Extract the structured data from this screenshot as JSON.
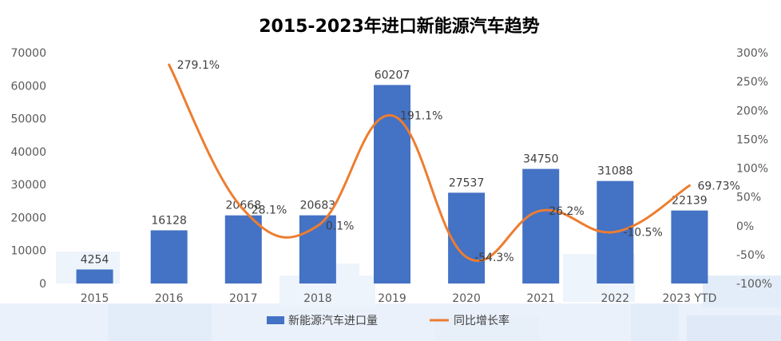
{
  "chart_data": {
    "type": "bar",
    "title": "2015-2023年进口新能源汽车趋势",
    "categories": [
      "2015",
      "2016",
      "2017",
      "2018",
      "2019",
      "2020",
      "2021",
      "2022",
      "2023 YTD"
    ],
    "series": [
      {
        "name": "新能源汽车进口量",
        "type": "bar",
        "axis": "left",
        "color": "#4472C4",
        "values": [
          4254,
          16128,
          20668,
          20683,
          60207,
          27537,
          34750,
          31088,
          22139
        ],
        "labels": [
          "4254",
          "16128",
          "20668",
          "20683",
          "60207",
          "27537",
          "34750",
          "31088",
          "22139"
        ]
      },
      {
        "name": "同比增长率",
        "type": "line",
        "axis": "right",
        "color": "#ED7D31",
        "values": [
          null,
          279.1,
          28.1,
          0.1,
          191.1,
          -54.3,
          26.2,
          -10.5,
          69.73
        ],
        "labels": [
          "",
          "279.1%",
          "28.1%",
          "0.1%",
          "191.1%",
          "-54.3%",
          "26.2%",
          "-10.5%",
          "69.73%"
        ]
      }
    ],
    "y_left": {
      "ylim": [
        0,
        70000
      ],
      "ticks": [
        "0",
        "10000",
        "20000",
        "30000",
        "40000",
        "50000",
        "60000",
        "70000"
      ]
    },
    "y_right": {
      "ylim": [
        -100,
        300
      ],
      "ticks": [
        "-100%",
        "-50%",
        "0%",
        "50%",
        "100%",
        "150%",
        "200%",
        "250%",
        "300%"
      ]
    },
    "grid": false,
    "legend": "bottom",
    "background_decoration": "light-blue-watermark"
  }
}
